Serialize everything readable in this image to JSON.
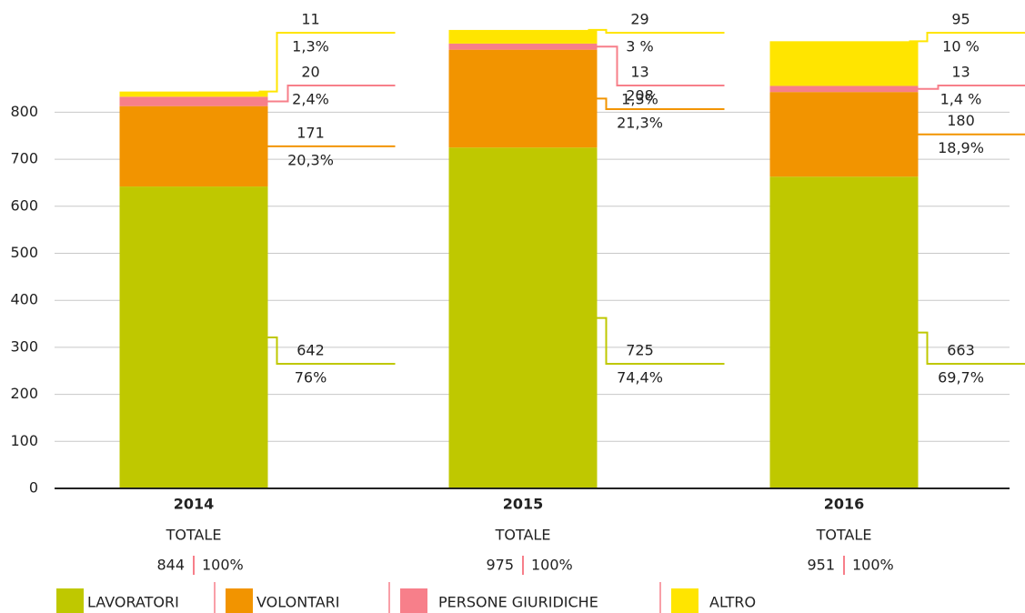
{
  "chart_data": {
    "type": "stacked_bar",
    "categories": [
      "2014",
      "2015",
      "2016"
    ],
    "series": [
      {
        "name": "LAVORATORI",
        "color": "#bfc800",
        "values": [
          642,
          725,
          663
        ],
        "value_shares": [
          "76%",
          "74,4%",
          "69,7%"
        ]
      },
      {
        "name": "VOLONTARI",
        "color": "#f29400",
        "values": [
          171,
          208,
          180
        ],
        "value_shares": [
          "20,3%",
          "21,3%",
          "18,9%"
        ]
      },
      {
        "name": "PERSONE GIURIDICHE",
        "color": "#f77f8a",
        "values": [
          20,
          13,
          13
        ],
        "value_shares": [
          "2,4%",
          "1,3%",
          "1,4 %"
        ]
      },
      {
        "name": "ALTRO",
        "color": "#ffe500",
        "values": [
          11,
          29,
          95
        ],
        "value_shares": [
          "1,3%",
          "3 %",
          "10 %"
        ]
      }
    ],
    "total_label": "TOTALE",
    "totals": [
      844,
      975,
      951
    ],
    "total_share": "100%",
    "ylim": [
      0,
      1000
    ],
    "yticks": [
      0,
      100,
      200,
      300,
      400,
      500,
      600,
      700,
      800
    ],
    "grid": true
  }
}
